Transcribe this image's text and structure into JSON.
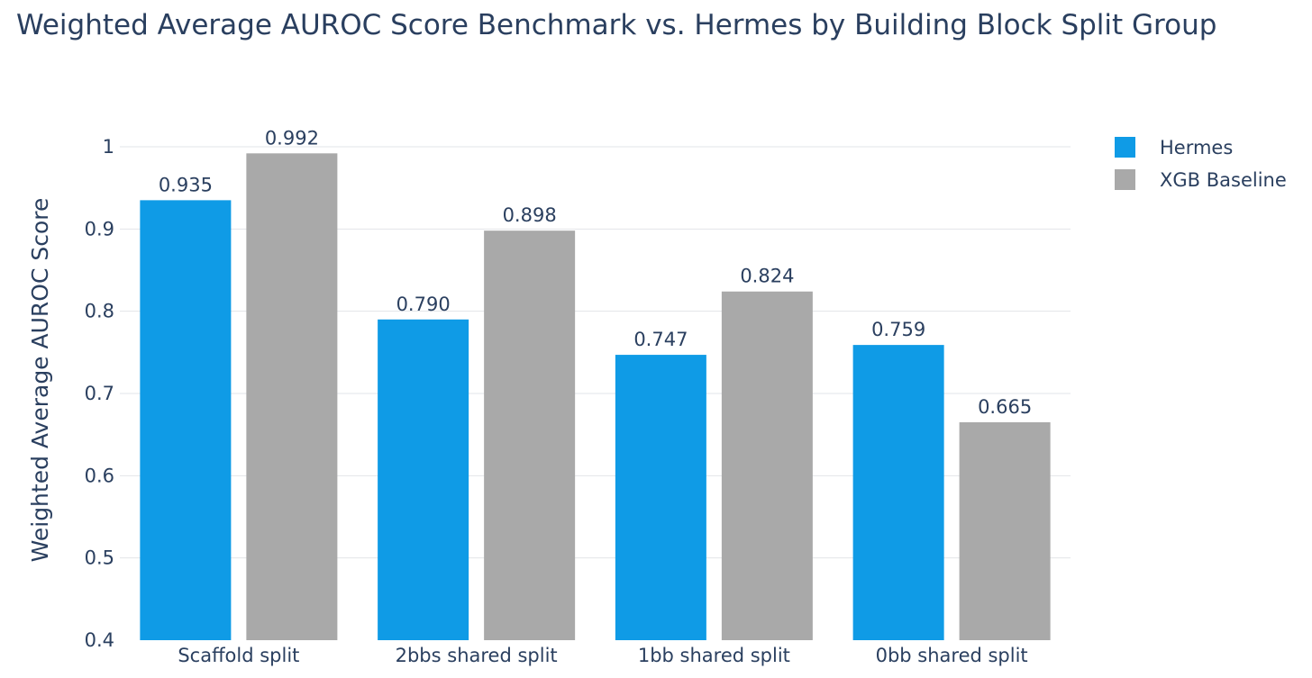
{
  "chart_data": {
    "type": "bar",
    "title": "Weighted Average AUROC Score Benchmark vs. Hermes by Building Block Split Group",
    "xlabel": "",
    "ylabel": "Weighted Average AUROC Score",
    "categories": [
      "Scaffold split",
      "2bbs shared split",
      "1bb shared split",
      "0bb shared split"
    ],
    "series": [
      {
        "name": "Hermes",
        "color": "#0f9be6",
        "values": [
          0.935,
          0.79,
          0.747,
          0.759
        ],
        "labels": [
          "0.935",
          "0.790",
          "0.747",
          "0.759"
        ]
      },
      {
        "name": "XGB Baseline",
        "color": "#a9a9a9",
        "values": [
          0.992,
          0.898,
          0.824,
          0.665
        ],
        "labels": [
          "0.992",
          "0.898",
          "0.824",
          "0.665"
        ]
      }
    ],
    "ylim": [
      0.4,
      1.0
    ],
    "yticks": [
      0.4,
      0.5,
      0.6,
      0.7,
      0.8,
      0.9,
      1.0
    ],
    "ytick_labels": [
      "0.4",
      "0.5",
      "0.6",
      "0.7",
      "0.8",
      "0.9",
      "1"
    ],
    "grid": true,
    "legend_position": "top-right"
  }
}
